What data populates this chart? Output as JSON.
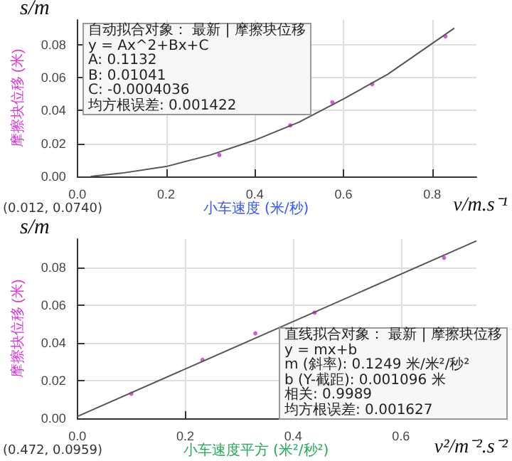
{
  "chart_data": [
    {
      "type": "scatter",
      "xlabel": "小车速度 (米/秒)",
      "ylabel": "摩擦块位移 (米)",
      "grid": true,
      "xlim": [
        0,
        0.9
      ],
      "xticks": [
        {
          "value": 0,
          "label": "0.0"
        },
        0.2,
        0.4,
        0.6,
        0.8
      ],
      "ylim": [
        0,
        0.095
      ],
      "yticks": [
        {
          "value": 0,
          "label": "0.00"
        },
        {
          "value": 0.02,
          "label": "0.02"
        },
        {
          "value": 0.04,
          "label": "0.04"
        },
        {
          "value": 0.06,
          "label": "0.06"
        },
        {
          "value": 0.08,
          "label": "0.08"
        }
      ],
      "annotations": [
        "s/m",
        "v/m.s⁻¹",
        "(0.012, 0.0740)",
        "自动拟合对象： 最新 | 摩擦块位移",
        "y = Ax^2+Bx+C",
        "A: 0.1132",
        "B: 0.01041",
        "C: -0.0004036",
        "均方根误差: 0.001422"
      ],
      "series": [
        {
          "type": "scatter",
          "color": "#cc33cc",
          "marker": "circle",
          "x": [
            0.32,
            0.48,
            0.575,
            0.665,
            0.83
          ],
          "values": [
            0.013,
            0.031,
            0.045,
            0.056,
            0.085
          ]
        },
        {
          "type": "line",
          "color": "#555555",
          "marker": "none",
          "line_style": "solid",
          "x": [
            0.03,
            0.1,
            0.2,
            0.3,
            0.4,
            0.5,
            0.6,
            0.7,
            0.85
          ],
          "values": [
            0.0,
            0.002,
            0.006,
            0.013,
            0.022,
            0.033,
            0.047,
            0.062,
            0.09
          ]
        }
      ]
    },
    {
      "type": "scatter",
      "xlabel": "小车速度平方 (米²/秒²)",
      "ylabel": "摩擦块位移 (米)",
      "grid": true,
      "xlim": [
        0,
        0.74
      ],
      "xticks": [
        {
          "value": 0,
          "label": "0.0"
        },
        0.2,
        0.4,
        0.6
      ],
      "ylim": [
        0,
        0.095
      ],
      "yticks": [
        {
          "value": 0,
          "label": "0.00"
        },
        {
          "value": 0.02,
          "label": "0.02"
        },
        {
          "value": 0.04,
          "label": "0.04"
        },
        {
          "value": 0.06,
          "label": "0.06"
        },
        {
          "value": 0.08,
          "label": "0.08"
        }
      ],
      "annotations": [
        "s/m",
        "v²/m⁻².s⁻²",
        "(0.472, 0.0959)",
        "直线拟合对象： 最新 | 摩擦块位移",
        "y = mx+b",
        "m (斜率): 0.1249 米/米²/秒²",
        "b (Y-截距): 0.001096 米",
        "相关: 0.9989",
        "均方根误差: 0.001627"
      ],
      "series": [
        {
          "type": "scatter",
          "color": "#cc33cc",
          "marker": "circle",
          "x": [
            0.1,
            0.232,
            0.33,
            0.44,
            0.68
          ],
          "values": [
            0.013,
            0.031,
            0.045,
            0.056,
            0.085
          ]
        },
        {
          "type": "line",
          "color": "#555555",
          "marker": "none",
          "line_style": "solid",
          "x": [
            0,
            0.74
          ],
          "values": [
            0.001,
            0.094
          ]
        }
      ]
    }
  ]
}
